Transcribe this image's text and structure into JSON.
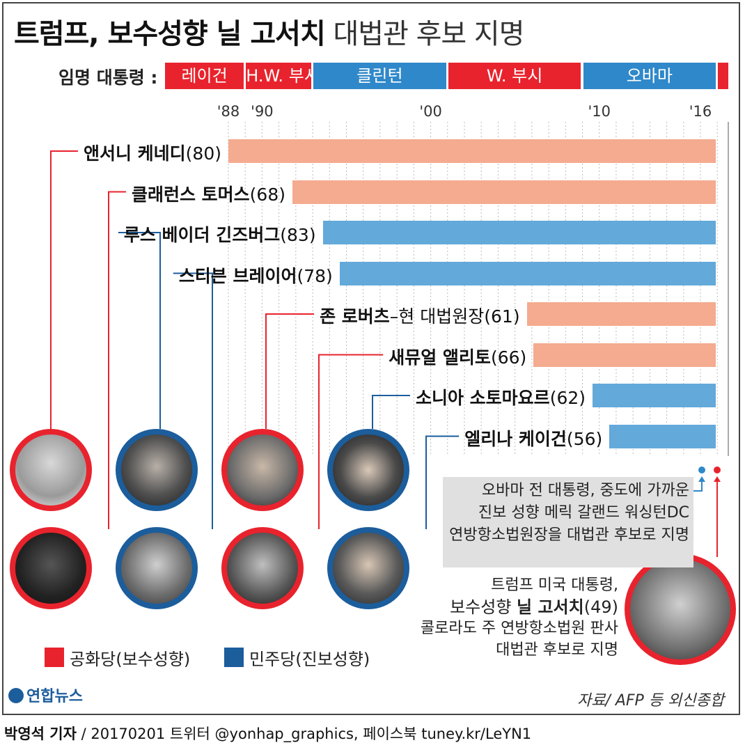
{
  "title": {
    "bold": "트럼프, 보수성향 닐 고서치",
    "rest": "대법관 후보 지명"
  },
  "presidents_label": "임명 대통령 :",
  "colors": {
    "rep_bar": "#f4ab8f",
    "dem_bar": "#63a9da",
    "rep": "#e8232d",
    "dem": "#1c5d9c",
    "pres_dem": "#2f88c9"
  },
  "chart_data": {
    "type": "bar",
    "orientation": "horizontal",
    "subtype": "timeline",
    "x_ticks": [
      "'88",
      "'90",
      "'00",
      "'10",
      "'16"
    ],
    "x_tick_years": [
      1988,
      1990,
      2000,
      2010,
      2016
    ],
    "xlim": [
      1988,
      2017
    ],
    "presidents": [
      {
        "name": "레이건",
        "start": 1981,
        "end": 1989,
        "party": "rep"
      },
      {
        "name": "H.W. 부시",
        "start": 1989,
        "end": 1993,
        "party": "rep"
      },
      {
        "name": "클린턴",
        "start": 1993,
        "end": 2001,
        "party": "dem"
      },
      {
        "name": "W. 부시",
        "start": 2001,
        "end": 2009,
        "party": "rep"
      },
      {
        "name": "오바마",
        "start": 2009,
        "end": 2017,
        "party": "dem"
      },
      {
        "name": "",
        "start": 2017,
        "end": 2017.9,
        "party": "rep"
      }
    ],
    "series": [
      {
        "name": "앤서니 케네디",
        "age": "(80)",
        "start": 1988,
        "end": 2017,
        "party": "rep",
        "suffix": ""
      },
      {
        "name": "클래런스 토머스",
        "age": "(68)",
        "start": 1991.8,
        "end": 2017,
        "party": "rep",
        "suffix": ""
      },
      {
        "name": "루스 베이더 긴즈버그",
        "age": "(83)",
        "start": 1993.6,
        "end": 2017,
        "party": "dem",
        "suffix": ""
      },
      {
        "name": "스티븐 브레이어",
        "age": "(78)",
        "start": 1994.6,
        "end": 2017,
        "party": "dem",
        "suffix": ""
      },
      {
        "name": "존 로버츠",
        "age": "(61)",
        "start": 2005.7,
        "end": 2017,
        "party": "rep",
        "suffix": "–현 대법원장"
      },
      {
        "name": "새뮤얼 앨리토",
        "age": "(66)",
        "start": 2006.1,
        "end": 2017,
        "party": "rep",
        "suffix": ""
      },
      {
        "name": "소니아 소토마요르",
        "age": "(62)",
        "start": 2009.6,
        "end": 2017,
        "party": "dem",
        "suffix": ""
      },
      {
        "name": "엘리나 케이건",
        "age": "(56)",
        "start": 2010.6,
        "end": 2017,
        "party": "dem",
        "suffix": ""
      }
    ]
  },
  "legend": {
    "rep": "공화당(보수성향)",
    "dem": "민주당(진보성향)"
  },
  "obama_note": [
    "오바마 전 대통령, 중도에 가까운",
    "진보 성향 메릭 갈랜드 워싱턴DC",
    "연방항소법원장을 대법관 후보로 지명"
  ],
  "trump_note": {
    "line1": "트럼프 미국 대통령,",
    "line2_pre": "보수성향 ",
    "line2_bold": "닐 고서치",
    "line2_age": "(49)",
    "line3": "콜로라도 주 연방항소법원 판사",
    "line4": "대법관 후보로 지명"
  },
  "logo": "연합뉴스",
  "source": "자료/ AFP 등 외신종합",
  "footer": {
    "author": "박영석 기자",
    "rest": " / 20170201  트위터 @yonhap_graphics, 페이스북 tuney.kr/LeYN1"
  }
}
